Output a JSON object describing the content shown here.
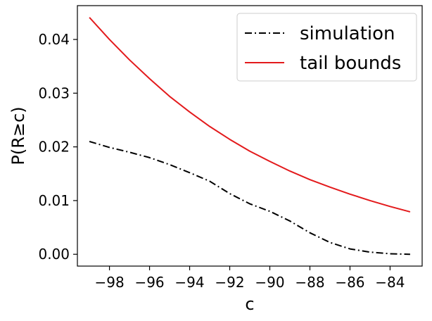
{
  "chart_data": {
    "type": "line",
    "xlabel": "c",
    "ylabel": "P(R≥c)",
    "xlim": [
      -99.6,
      -82.4
    ],
    "ylim": [
      -0.0022,
      0.0463
    ],
    "xticks": [
      -98,
      -96,
      -94,
      -92,
      -90,
      -88,
      -86,
      -84
    ],
    "xtick_labels": [
      "−98",
      "−96",
      "−94",
      "−92",
      "−90",
      "−88",
      "−86",
      "−84"
    ],
    "yticks": [
      0.0,
      0.01,
      0.02,
      0.03,
      0.04
    ],
    "ytick_labels": [
      "0.00",
      "0.01",
      "0.02",
      "0.03",
      "0.04"
    ],
    "grid": false,
    "legend_position": "top-right",
    "series": [
      {
        "name": "simulation",
        "color": "#000000",
        "dash": "dash-dot",
        "x": [
          -99,
          -98,
          -97,
          -96,
          -95,
          -94,
          -93,
          -92,
          -91,
          -90,
          -89,
          -88,
          -87,
          -86,
          -85,
          -84,
          -83
        ],
        "y": [
          0.021,
          0.0199,
          0.019,
          0.018,
          0.0167,
          0.0152,
          0.0136,
          0.0113,
          0.0094,
          0.008,
          0.0062,
          0.004,
          0.0022,
          0.001,
          0.0004,
          0.0001,
          0.0
        ]
      },
      {
        "name": "tail bounds",
        "color": "#e31a1c",
        "dash": "solid",
        "x": [
          -99,
          -98,
          -97,
          -96,
          -95,
          -94,
          -93,
          -92,
          -91,
          -90,
          -89,
          -88,
          -87,
          -86,
          -85,
          -84,
          -83
        ],
        "y": [
          0.0441,
          0.04,
          0.0362,
          0.0327,
          0.0294,
          0.0265,
          0.0238,
          0.0214,
          0.0192,
          0.0173,
          0.0155,
          0.0139,
          0.0125,
          0.0112,
          0.01,
          0.0089,
          0.0079
        ]
      }
    ]
  }
}
